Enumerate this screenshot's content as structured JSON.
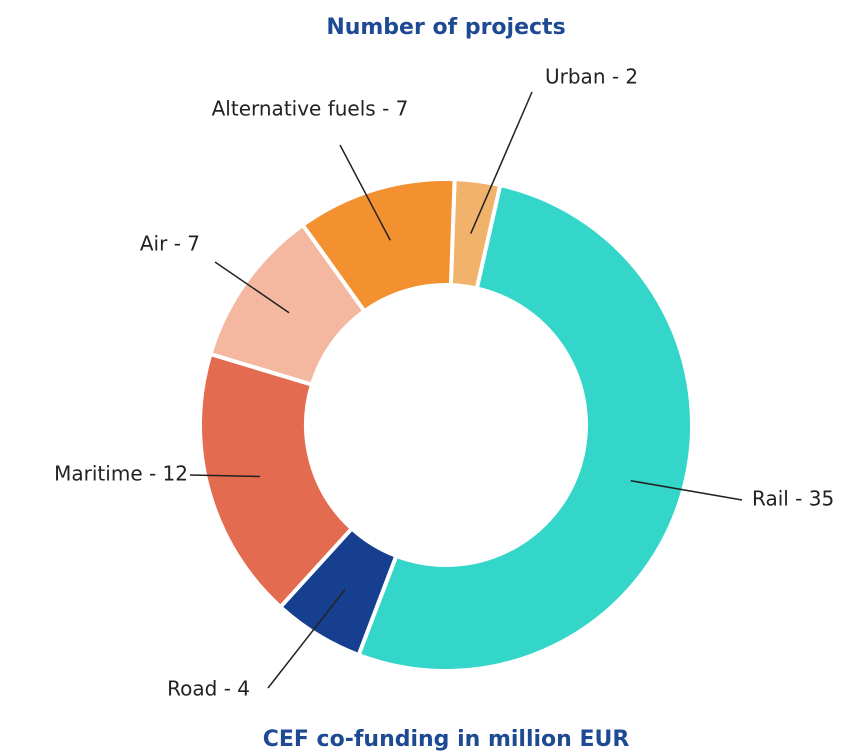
{
  "chart_data": {
    "type": "donut",
    "title": "Number of projects",
    "subtitle": "CEF co-funding in million EUR",
    "values": [
      2,
      35,
      4,
      12,
      7,
      7
    ],
    "value_labels": [
      "Urban - 2",
      "Rail - 35",
      "Road - 4",
      "Maritime - 12",
      "Air - 7",
      "Alternative fuels - 7"
    ],
    "colors": [
      "#f1b36c",
      "#33d6c8",
      "#173f8f",
      "#e36b4f",
      "#f4b8a0",
      "#f39030"
    ]
  }
}
